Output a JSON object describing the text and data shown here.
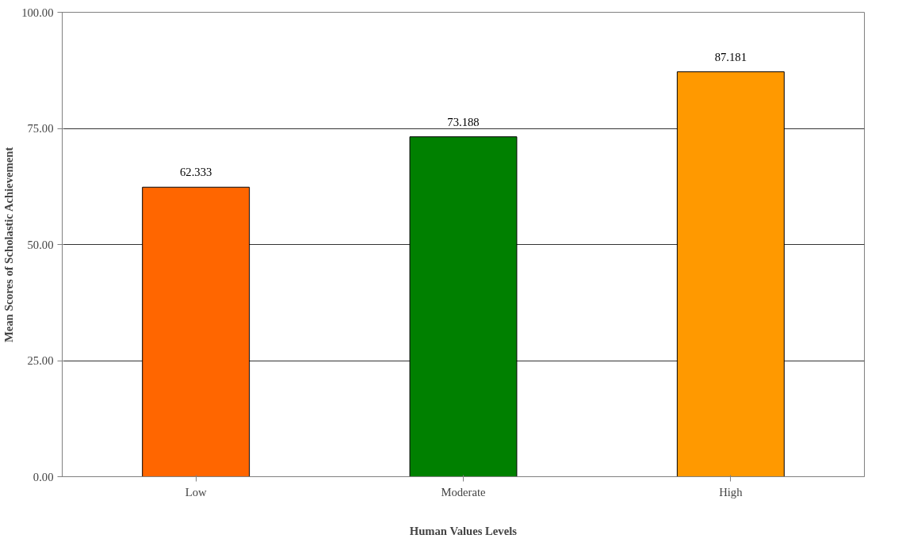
{
  "chart_data": {
    "type": "bar",
    "categories": [
      "Low",
      "Moderate",
      "High"
    ],
    "values": [
      62.333,
      73.188,
      87.181
    ],
    "colors": [
      "#ff6600",
      "#008000",
      "#ff9900"
    ],
    "xlabel": "Human Values Levels",
    "ylabel": "Mean Scores of Scholastic Achievement",
    "ylim": [
      0,
      100
    ],
    "yticks": [
      {
        "value": 0,
        "label": "0.00"
      },
      {
        "value": 25,
        "label": "25.00"
      },
      {
        "value": 50,
        "label": "50.00"
      },
      {
        "value": 75,
        "label": "75.00"
      },
      {
        "value": 100,
        "label": "100.00"
      }
    ],
    "grid": "y",
    "data_labels": true
  }
}
